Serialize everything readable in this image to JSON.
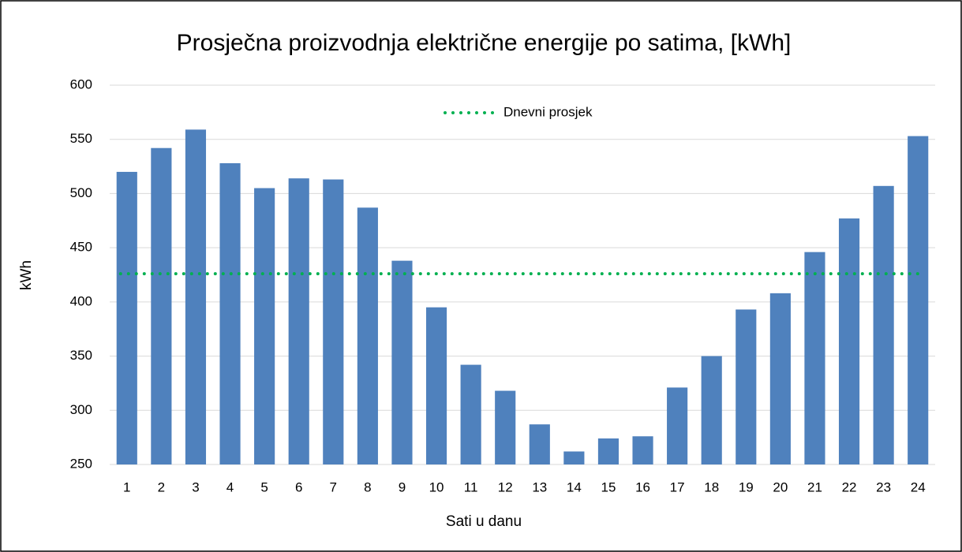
{
  "chart_data": {
    "type": "bar",
    "title": "Prosječna proizvodnja električne energije po satima, [kWh]",
    "x_label": "Sati u danu",
    "y_label": "kWh",
    "categories": [
      "1",
      "2",
      "3",
      "4",
      "5",
      "6",
      "7",
      "8",
      "9",
      "10",
      "11",
      "12",
      "13",
      "14",
      "15",
      "16",
      "17",
      "18",
      "19",
      "20",
      "21",
      "22",
      "23",
      "24"
    ],
    "values": [
      520,
      542,
      559,
      528,
      505,
      514,
      513,
      487,
      438,
      395,
      342,
      318,
      287,
      262,
      274,
      276,
      321,
      350,
      393,
      408,
      446,
      477,
      507,
      553
    ],
    "color": "#4f81bd",
    "reference_line": {
      "name": "Dnevni prosjek",
      "value": 426,
      "color": "#00b050"
    },
    "ylim": [
      250,
      600
    ],
    "yticks": [
      250,
      300,
      350,
      400,
      450,
      500,
      550,
      600
    ],
    "grid": true
  }
}
